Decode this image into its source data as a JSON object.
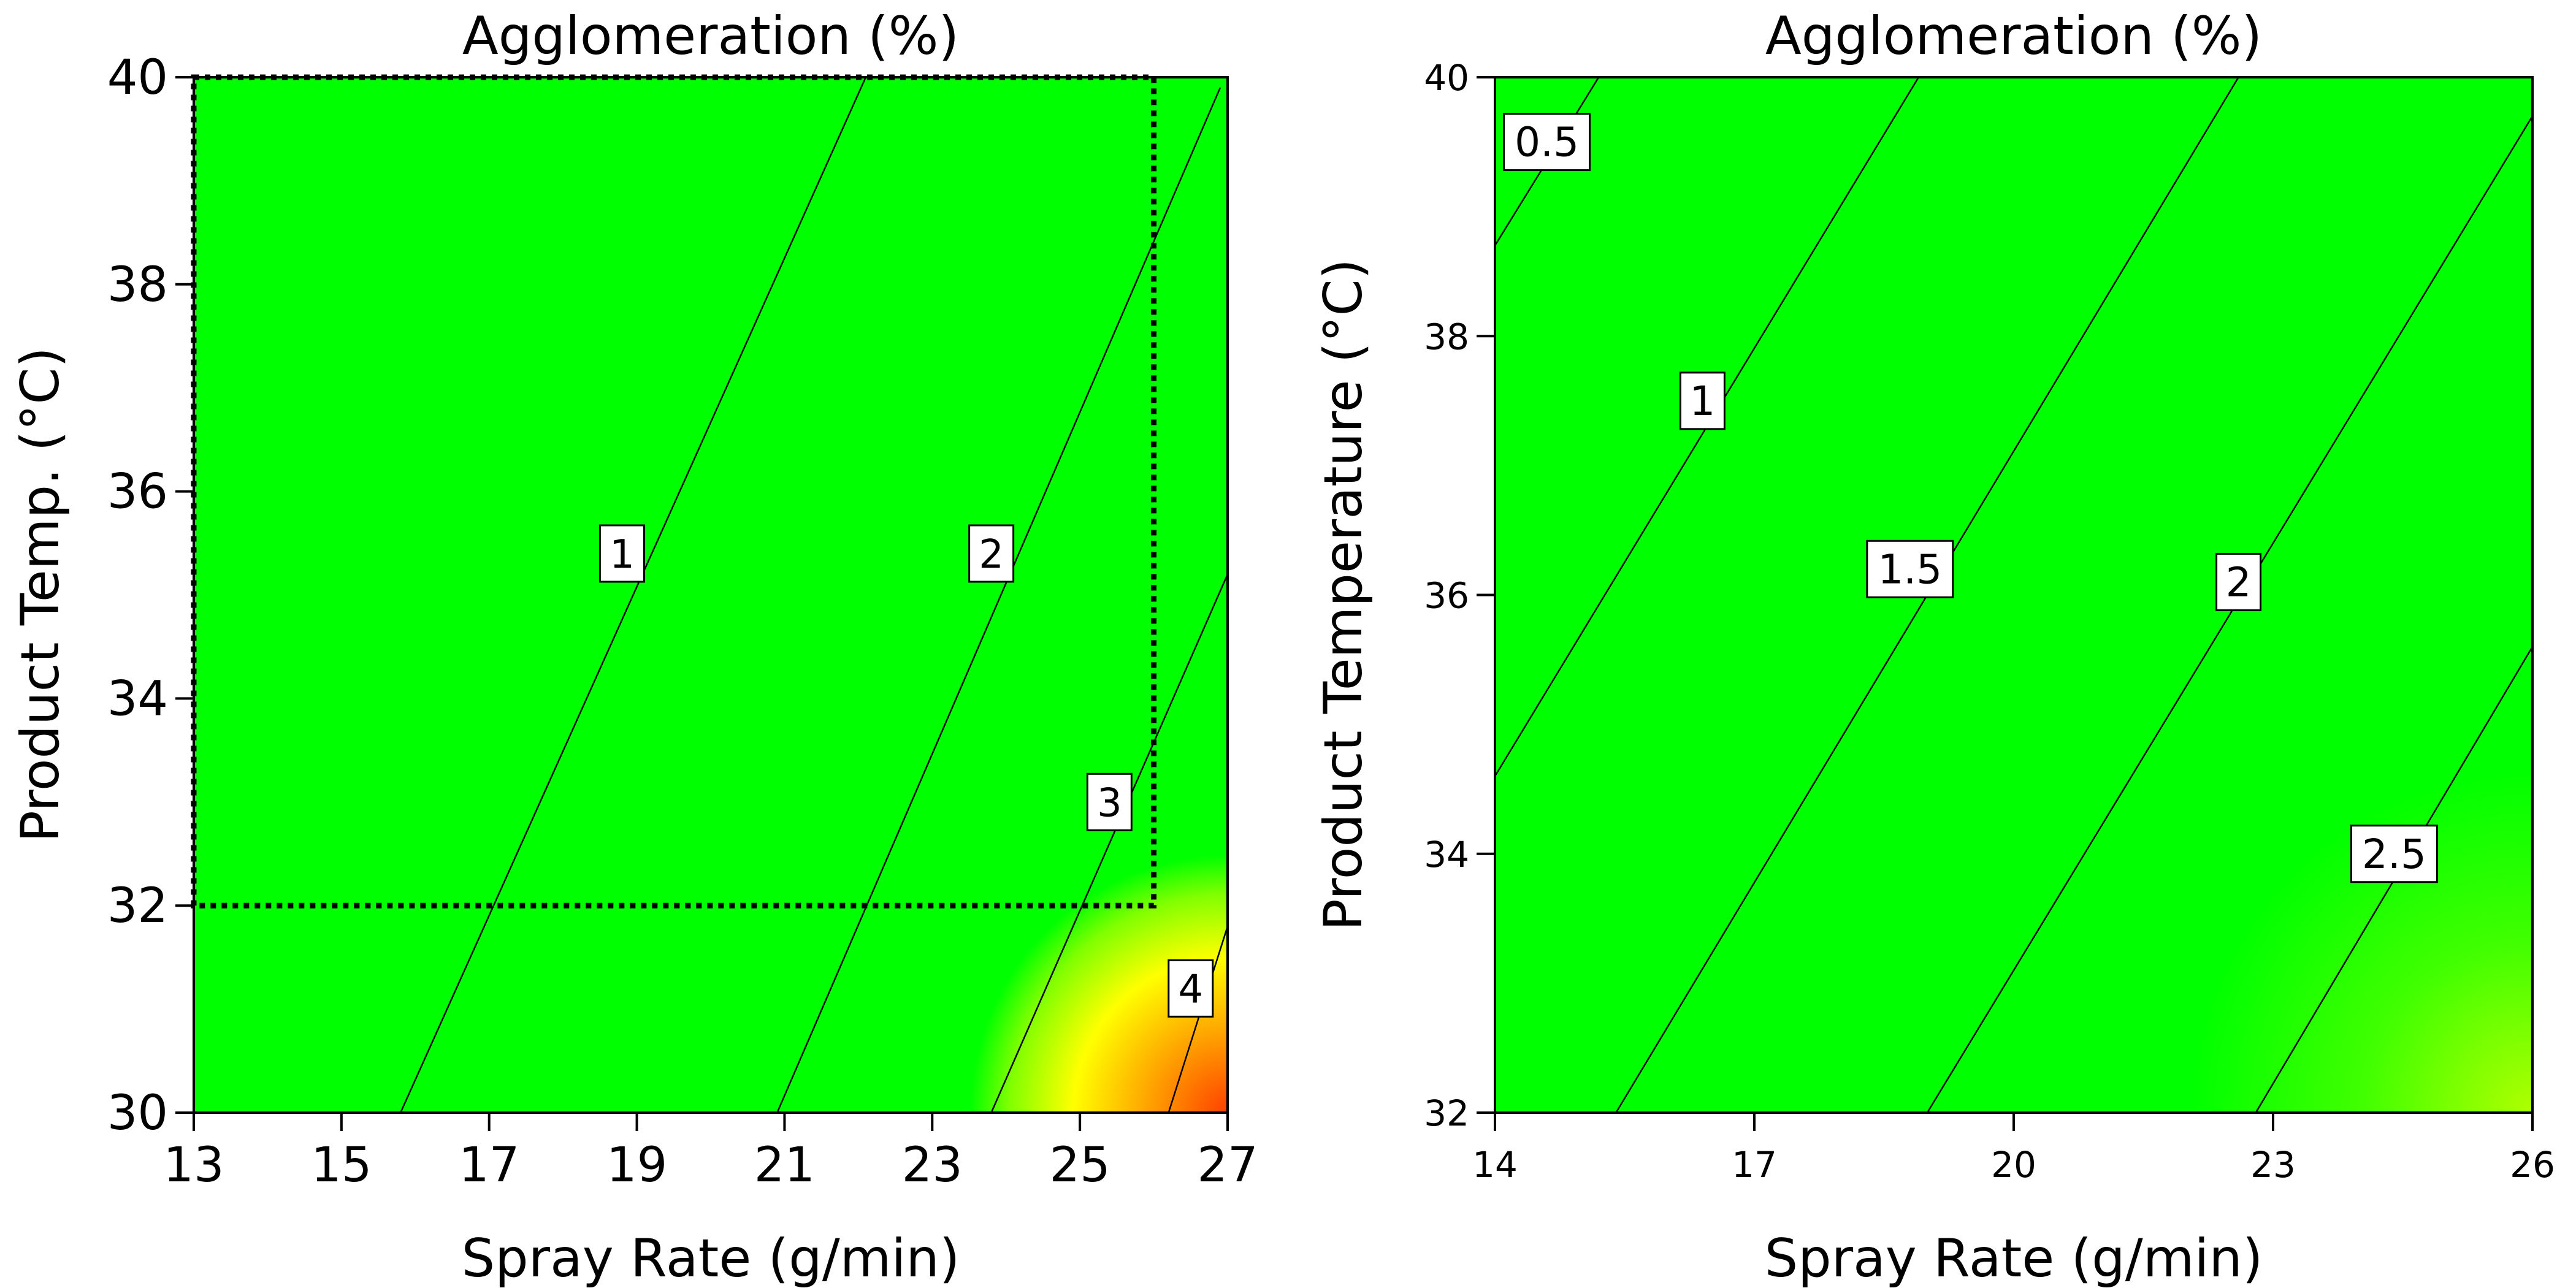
{
  "chart_data": [
    {
      "type": "contour",
      "title": "Agglomeration (%)",
      "xlabel": "Spray Rate (g/min)",
      "ylabel": "Product Temp. (°C)",
      "xlim": [
        13,
        27
      ],
      "ylim": [
        30,
        40
      ],
      "xticks": [
        "13",
        "15",
        "17",
        "19",
        "21",
        "23",
        "25",
        "27"
      ],
      "yticks": [
        "30",
        "32",
        "34",
        "36",
        "38",
        "40"
      ],
      "colors": {
        "low": "#00ff00",
        "mid": "#ffff00",
        "high": "#ff4000"
      },
      "contours": [
        {
          "level": "1",
          "points": [
            [
              15.8,
              30
            ],
            [
              22.1,
              40
            ]
          ],
          "label_at": [
            18.8,
            35.4
          ]
        },
        {
          "level": "2",
          "points": [
            [
              20.9,
              30
            ],
            [
              26.9,
              39.9
            ]
          ],
          "label_at": [
            23.8,
            35.4
          ]
        },
        {
          "level": "3",
          "points": [
            [
              23.8,
              30
            ],
            [
              27,
              35.2
            ]
          ],
          "label_at": [
            25.4,
            33.0
          ]
        },
        {
          "level": "4",
          "points": [
            [
              26.2,
              30
            ],
            [
              27,
              31.8
            ]
          ],
          "label_at": [
            26.5,
            31.2
          ]
        }
      ],
      "design_space": {
        "x": [
          13,
          26
        ],
        "y": [
          32,
          40
        ],
        "style": "dotted"
      }
    },
    {
      "type": "contour",
      "title": "Agglomeration (%)",
      "xlabel": "Spray Rate (g/min)",
      "ylabel": "Product Temperature (°C)",
      "xlim": [
        14,
        26
      ],
      "ylim": [
        32,
        40
      ],
      "xticks": [
        "14",
        "17",
        "20",
        "23",
        "26"
      ],
      "yticks": [
        "32",
        "34",
        "36",
        "38",
        "40"
      ],
      "colors": {
        "low": "#00ff00",
        "mid": "#aaff00"
      },
      "contours": [
        {
          "level": "0.5",
          "points": [
            [
              14,
              38.7
            ],
            [
              15.2,
              40
            ]
          ],
          "label_at": [
            14.6,
            39.5
          ]
        },
        {
          "level": "1",
          "points": [
            [
              14,
              34.6
            ],
            [
              18.9,
              40
            ]
          ],
          "label_at": [
            16.4,
            37.5
          ]
        },
        {
          "level": "1.5",
          "points": [
            [
              15.4,
              32
            ],
            [
              22.6,
              40
            ]
          ],
          "label_at": [
            18.8,
            36.2
          ]
        },
        {
          "level": "2",
          "points": [
            [
              19.0,
              32
            ],
            [
              26,
              39.7
            ]
          ],
          "label_at": [
            22.6,
            36.1
          ]
        },
        {
          "level": "2.5",
          "points": [
            [
              22.8,
              32
            ],
            [
              26,
              35.6
            ]
          ],
          "label_at": [
            24.4,
            34.0
          ]
        }
      ]
    }
  ]
}
